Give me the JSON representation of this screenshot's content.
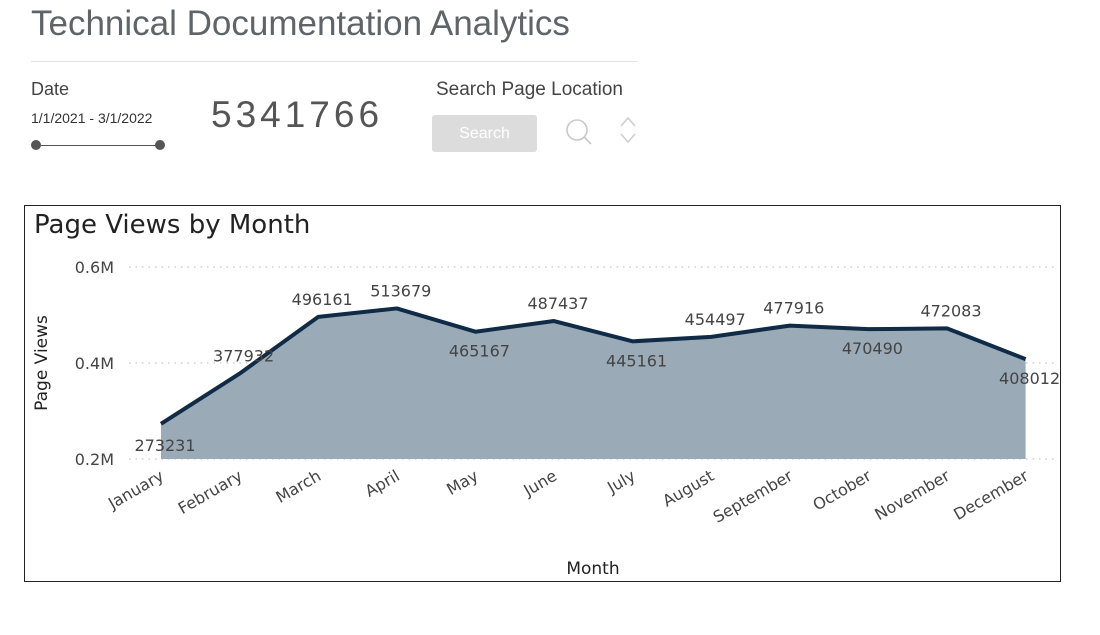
{
  "header": {
    "title": "Technical Documentation Analytics"
  },
  "date_filter": {
    "label": "Date",
    "range": "1/1/2021 - 3/1/2022"
  },
  "kpi": {
    "total_views": "5341766"
  },
  "search": {
    "label": "Search Page Location",
    "button_label": "Search"
  },
  "colors": {
    "area_fill": "#9aaab7",
    "line": "#0f2b46",
    "grid": "#cfcfcf",
    "search_button": "#dcdcdc"
  },
  "icons": {
    "search": "magnifier-icon",
    "sort": "up-down-chevron-icon"
  },
  "chart_data": {
    "type": "area",
    "title": "Page Views by Month",
    "xlabel": "Month",
    "ylabel": "Page Views",
    "categories": [
      "January",
      "February",
      "March",
      "April",
      "May",
      "June",
      "July",
      "August",
      "September",
      "October",
      "November",
      "December"
    ],
    "values": [
      273231,
      377932,
      496161,
      513679,
      465167,
      487437,
      445161,
      454497,
      477916,
      470490,
      472083,
      408012
    ],
    "data_labels": [
      "273231",
      "377932",
      "496161",
      "513679",
      "465167",
      "487437",
      "445161",
      "454497",
      "477916",
      "470490",
      "472083",
      "408012"
    ],
    "y_ticks": [
      200000,
      400000,
      600000
    ],
    "y_tick_labels": [
      "0.2M",
      "0.4M",
      "0.6M"
    ],
    "ylim": [
      200000,
      600000
    ],
    "grid": true,
    "legend": "none"
  }
}
